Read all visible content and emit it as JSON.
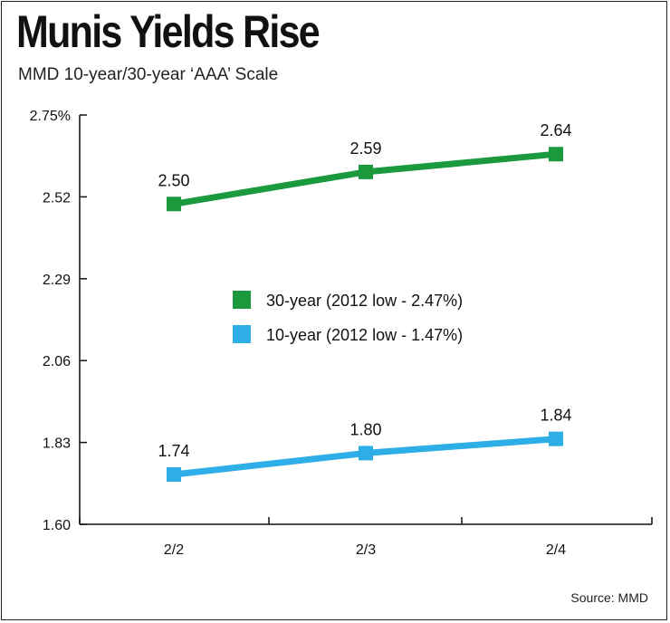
{
  "chart_data": {
    "type": "line",
    "title": "Munis Yields Rise",
    "subtitle": "MMD 10-year/30-year ‘AAA’ Scale",
    "source": "Source: MMD",
    "categories": [
      "2/2",
      "2/3",
      "2/4"
    ],
    "ylim": [
      1.6,
      2.75
    ],
    "yticks": [
      "2.75%",
      "2.52",
      "2.29",
      "2.06",
      "1.83",
      "1.60"
    ],
    "ytick_values": [
      2.75,
      2.52,
      2.29,
      2.06,
      1.83,
      1.6
    ],
    "grid": false,
    "legend_position": "center",
    "series": [
      {
        "name": "30-year (2012 low - 2.47%)",
        "values": [
          2.5,
          2.59,
          2.64
        ],
        "labels": [
          "2.50",
          "2.59",
          "2.64"
        ],
        "color": "#1a9a3d"
      },
      {
        "name": "10-year (2012 low - 1.47%)",
        "values": [
          1.74,
          1.8,
          1.84
        ],
        "labels": [
          "1.74",
          "1.80",
          "1.84"
        ],
        "color": "#2eaee6"
      }
    ]
  }
}
